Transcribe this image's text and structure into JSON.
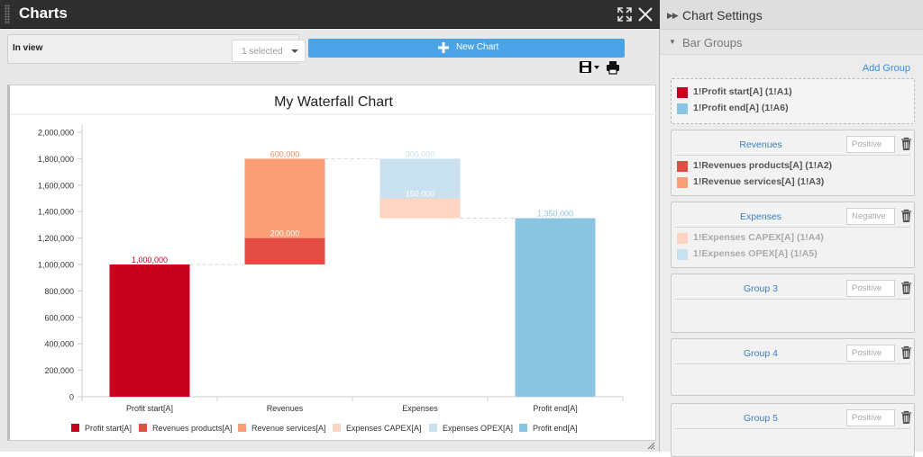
{
  "window": {
    "title": "Charts"
  },
  "toolbar": {
    "in_view_label": "In view",
    "selected_value": "1 selected",
    "new_chart_label": "New Chart"
  },
  "chart_data": {
    "type": "waterfall",
    "title": "My Waterfall Chart",
    "categories": [
      "Profit start[A]",
      "Revenues",
      "Expenses",
      "Profit end[A]"
    ],
    "yticks": [
      "2,000,000",
      "1,800,000",
      "1,600,000",
      "1,400,000",
      "1,200,000",
      "1,000,000",
      "800,000",
      "600,000",
      "400,000",
      "200,000",
      "0"
    ],
    "ylim": [
      0,
      2000000
    ],
    "series": [
      {
        "name": "Profit start[A]",
        "color": "#c8001e",
        "category": 0,
        "base": 0,
        "value": 1000000,
        "label": "1,000,000",
        "label_color": "#c8001e"
      },
      {
        "name": "Revenues products[A]",
        "color": "#e34c43",
        "category": 1,
        "base": 1000000,
        "value": 200000,
        "label": "200,000",
        "label_color": "#ffffff"
      },
      {
        "name": "Revenue services[A]",
        "color": "#fb9d76",
        "category": 1,
        "base": 1200000,
        "value": 600000,
        "label": "600,000",
        "label_color": "#f0895f"
      },
      {
        "name": "Expenses CAPEX[A]",
        "color": "#fdd5c2",
        "category": 2,
        "base": 1350000,
        "value": 150000,
        "label": "150,000",
        "label_color": "#ffffff"
      },
      {
        "name": "Expenses OPEX[A]",
        "color": "#c9e1ef",
        "category": 2,
        "base": 1500000,
        "value": 300000,
        "label": "300,000",
        "label_color": "#c9e1ef"
      },
      {
        "name": "Profit end[A]",
        "color": "#8ac4e0",
        "category": 3,
        "base": 0,
        "value": 1350000,
        "label": "1,350,000",
        "label_color": "#8ac4e0"
      }
    ],
    "connectors": [
      1000000,
      1800000,
      1350000
    ],
    "legend_position": "bottom"
  },
  "settings": {
    "title": "Chart Settings",
    "bar_groups_title": "Bar Groups",
    "add_group_label": "Add Group",
    "ungrouped": [
      {
        "label": "1!Profit start[A] (1!A1)",
        "color": "#c8001e",
        "text_color": "#555555"
      },
      {
        "label": "1!Profit end[A] (1!A6)",
        "color": "#8ac4e0",
        "text_color": "#555555"
      }
    ],
    "groups": [
      {
        "name": "Revenues",
        "sign": "Positive",
        "items": [
          {
            "label": "1!Revenues products[A] (1!A2)",
            "color": "#e34c43",
            "text_color": "#555555"
          },
          {
            "label": "1!Revenue services[A] (1!A3)",
            "color": "#fb9d76",
            "text_color": "#555555"
          }
        ]
      },
      {
        "name": "Expenses",
        "sign": "Negative",
        "items": [
          {
            "label": "1!Expenses CAPEX[A] (1!A4)",
            "color": "#fdd5c2",
            "text_color": "#aaaaaa"
          },
          {
            "label": "1!Expenses OPEX[A] (1!A5)",
            "color": "#c9e1ef",
            "text_color": "#aaaaaa"
          }
        ]
      },
      {
        "name": "Group 3",
        "sign": "Positive",
        "items": []
      },
      {
        "name": "Group 4",
        "sign": "Positive",
        "items": []
      },
      {
        "name": "Group 5",
        "sign": "Positive",
        "items": []
      }
    ]
  }
}
